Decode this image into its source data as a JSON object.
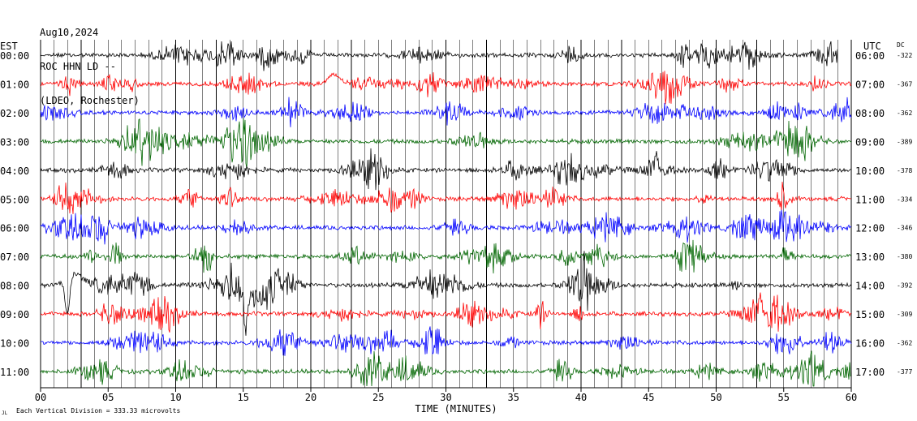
{
  "header": {
    "date": "Aug10,2024",
    "station": "ROC HHN LD --",
    "network": "(LDEO, Rochester)"
  },
  "footer": {
    "scale_note": "Each Vertical Division =  333.33 microvolts",
    "corner_mark": "JL"
  },
  "chart_data": {
    "type": "line",
    "title": "Aug10,2024 ROC HHN LD -- (LDEO, Rochester)",
    "xlabel": "TIME (MINUTES)",
    "left_axis_label": "EST",
    "right_axis_label": "UTC",
    "dc_label": "DC",
    "xlim": [
      0,
      60
    ],
    "x_ticks": [
      "00",
      "05",
      "10",
      "15",
      "20",
      "25",
      "30",
      "35",
      "40",
      "45",
      "50",
      "55",
      "60"
    ],
    "grid": "vertical lines every minute",
    "trace_colors": [
      "#000000",
      "#ff0000",
      "#0000ff",
      "#006600"
    ],
    "rows": [
      {
        "est": "00:00",
        "utc": "06:00",
        "dc": "-322",
        "color": "#000000",
        "end_minute": 59
      },
      {
        "est": "01:00",
        "utc": "07:00",
        "dc": "-367",
        "color": "#ff0000",
        "end_minute": 60
      },
      {
        "est": "02:00",
        "utc": "08:00",
        "dc": "-362",
        "color": "#0000ff",
        "end_minute": 60
      },
      {
        "est": "03:00",
        "utc": "09:00",
        "dc": "-389",
        "color": "#006600",
        "end_minute": 60
      },
      {
        "est": "04:00",
        "utc": "10:00",
        "dc": "-378",
        "color": "#000000",
        "end_minute": 60
      },
      {
        "est": "05:00",
        "utc": "11:00",
        "dc": "-334",
        "color": "#ff0000",
        "end_minute": 60
      },
      {
        "est": "06:00",
        "utc": "12:00",
        "dc": "-346",
        "color": "#0000ff",
        "end_minute": 60
      },
      {
        "est": "07:00",
        "utc": "13:00",
        "dc": "-380",
        "color": "#006600",
        "end_minute": 60
      },
      {
        "est": "08:00",
        "utc": "14:00",
        "dc": "-392",
        "color": "#000000",
        "end_minute": 60
      },
      {
        "est": "09:00",
        "utc": "15:00",
        "dc": "-309",
        "color": "#ff0000",
        "end_minute": 60
      },
      {
        "est": "10:00",
        "utc": "16:00",
        "dc": "-362",
        "color": "#0000ff",
        "end_minute": 60
      },
      {
        "est": "11:00",
        "utc": "17:00",
        "dc": "-377",
        "color": "#006600",
        "end_minute": 60
      }
    ]
  }
}
